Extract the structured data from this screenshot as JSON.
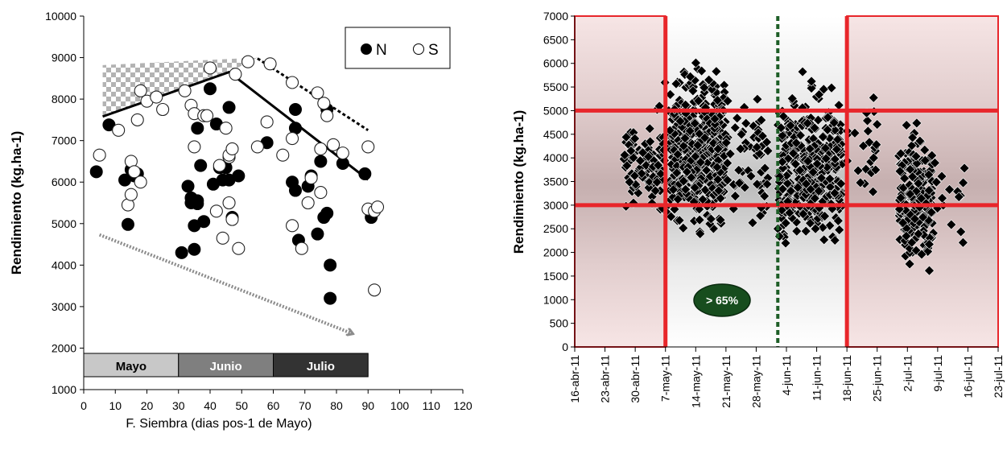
{
  "chart_data": [
    {
      "type": "scatter",
      "xlabel": "F. Siembra (dias pos-1 de Mayo)",
      "ylabel": "Rendimiento (kg.ha-1)",
      "xlim": [
        0,
        120
      ],
      "ylim": [
        1000,
        10000
      ],
      "x_ticks": [
        "0",
        "10",
        "20",
        "30",
        "40",
        "50",
        "60",
        "70",
        "80",
        "90",
        "100",
        "110",
        "120"
      ],
      "y_ticks": [
        "1000",
        "2000",
        "3000",
        "4000",
        "5000",
        "6000",
        "7000",
        "8000",
        "9000",
        "10000"
      ],
      "legend": {
        "placement": "top-right",
        "items": [
          {
            "label": "N",
            "marker": "filled-circle"
          },
          {
            "label": "S",
            "marker": "open-circle"
          }
        ]
      },
      "month_bands": [
        {
          "label": "Mayo",
          "x0": 0,
          "x1": 30,
          "color": "#c8c8c8",
          "text_color": "#000000"
        },
        {
          "label": "Junio",
          "x0": 30,
          "x1": 60,
          "color": "#7f7f7f",
          "text_color": "#ffffff"
        },
        {
          "label": "Julio",
          "x0": 60,
          "x1": 90,
          "color": "#333333",
          "text_color": "#ffffff"
        }
      ],
      "series": [
        {
          "name": "N",
          "points": [
            [
              4,
              6250
            ],
            [
              8,
              7380
            ],
            [
              13,
              6050
            ],
            [
              14,
              4980
            ],
            [
              15,
              6300
            ],
            [
              16,
              6150
            ],
            [
              17,
              6200
            ],
            [
              31,
              4300
            ],
            [
              33,
              5900
            ],
            [
              34,
              5500
            ],
            [
              34,
              5620
            ],
            [
              35,
              4950
            ],
            [
              35,
              4380
            ],
            [
              36,
              5480
            ],
            [
              36,
              5550
            ],
            [
              36,
              7300
            ],
            [
              37,
              6400
            ],
            [
              38,
              5050
            ],
            [
              40,
              8250
            ],
            [
              41,
              5950
            ],
            [
              42,
              7400
            ],
            [
              43,
              6350
            ],
            [
              44,
              6050
            ],
            [
              45,
              6350
            ],
            [
              46,
              7800
            ],
            [
              46,
              6050
            ],
            [
              47,
              5150
            ],
            [
              49,
              6150
            ],
            [
              58,
              6950
            ],
            [
              66,
              6000
            ],
            [
              67,
              7750
            ],
            [
              67,
              7300
            ],
            [
              67,
              5800
            ],
            [
              68,
              4600
            ],
            [
              71,
              5900
            ],
            [
              72,
              6150
            ],
            [
              74,
              4750
            ],
            [
              75,
              6500
            ],
            [
              76,
              5150
            ],
            [
              77,
              5250
            ],
            [
              77,
              7750
            ],
            [
              78,
              4000
            ],
            [
              78,
              3200
            ],
            [
              82,
              6450
            ],
            [
              89,
              6200
            ],
            [
              91,
              5150
            ]
          ]
        },
        {
          "name": "S",
          "points": [
            [
              5,
              6650
            ],
            [
              11,
              7250
            ],
            [
              14,
              5450
            ],
            [
              15,
              6500
            ],
            [
              15,
              5700
            ],
            [
              16,
              6250
            ],
            [
              17,
              7500
            ],
            [
              18,
              8200
            ],
            [
              18,
              6000
            ],
            [
              20,
              7950
            ],
            [
              23,
              8050
            ],
            [
              25,
              7750
            ],
            [
              32,
              8200
            ],
            [
              34,
              7850
            ],
            [
              35,
              7650
            ],
            [
              35,
              6850
            ],
            [
              38,
              7600
            ],
            [
              39,
              7600
            ],
            [
              40,
              8750
            ],
            [
              42,
              5300
            ],
            [
              43,
              6400
            ],
            [
              44,
              4650
            ],
            [
              45,
              7300
            ],
            [
              46,
              6600
            ],
            [
              46,
              6650
            ],
            [
              46,
              5500
            ],
            [
              47,
              6800
            ],
            [
              47,
              5100
            ],
            [
              48,
              8600
            ],
            [
              49,
              4400
            ],
            [
              52,
              8900
            ],
            [
              55,
              6850
            ],
            [
              58,
              7450
            ],
            [
              59,
              8850
            ],
            [
              63,
              6650
            ],
            [
              66,
              7050
            ],
            [
              66,
              8400
            ],
            [
              66,
              4950
            ],
            [
              69,
              4400
            ],
            [
              71,
              5500
            ],
            [
              72,
              6100
            ],
            [
              74,
              8150
            ],
            [
              75,
              6800
            ],
            [
              75,
              5750
            ],
            [
              76,
              7900
            ],
            [
              77,
              7600
            ],
            [
              79,
              6900
            ],
            [
              82,
              6700
            ],
            [
              90,
              6850
            ],
            [
              90,
              5350
            ],
            [
              92,
              5300
            ],
            [
              92,
              3400
            ],
            [
              93,
              5400
            ]
          ]
        }
      ],
      "trend_lines": [
        {
          "style": "solid",
          "points": [
            [
              6,
              7580
            ],
            [
              46,
              8650
            ],
            [
              90,
              6060
            ]
          ]
        },
        {
          "style": "dashed",
          "points": [
            [
              55,
              8980
            ],
            [
              90,
              7250
            ]
          ]
        }
      ],
      "arrow": {
        "style": "dotted",
        "from": [
          5,
          4730
        ],
        "to": [
          85,
          2350
        ]
      },
      "hatch_area": {
        "points": [
          [
            6,
            8820
          ],
          [
            55,
            9000
          ],
          [
            46,
            8650
          ],
          [
            6,
            7580
          ]
        ]
      }
    },
    {
      "type": "scatter",
      "ylabel": "Rendimiento (kg.ha-1)",
      "ylim": [
        0,
        7000
      ],
      "x_ticks": [
        "16-abr-11",
        "23-abr-11",
        "30-abr-11",
        "7-may-11",
        "14-may-11",
        "21-may-11",
        "28-may-11",
        "4-jun-11",
        "11-jun-11",
        "18-jun-11",
        "25-jun-11",
        "2-jul-11",
        "9-jul-11",
        "16-jul-11",
        "23-jul-11"
      ],
      "y_ticks": [
        "0",
        "500",
        "1000",
        "1500",
        "2000",
        "2500",
        "3000",
        "3500",
        "4000",
        "4500",
        "5000",
        "5500",
        "6000",
        "6500",
        "7000"
      ],
      "x_range_days_since_first_tick": [
        0,
        98
      ],
      "reference_lines": {
        "vertical_red_days": [
          21,
          63
        ],
        "horizontal_red_values": [
          3000,
          5000
        ],
        "vertical_dashed_green_day": [
          47
        ]
      },
      "badge": {
        "label": "> 65%"
      },
      "shaded_regions_days": [
        [
          0,
          21
        ],
        [
          63,
          98
        ]
      ],
      "point_clusters": [
        {
          "x_days": [
            11,
            20
          ],
          "y_range": [
            2700,
            4900
          ],
          "count": 85
        },
        {
          "x_days": [
            19,
            22
          ],
          "y_range": [
            2200,
            6200
          ],
          "count": 20
        },
        {
          "x_days": [
            22,
            35
          ],
          "y_range": [
            2100,
            6300
          ],
          "count": 480
        },
        {
          "x_days": [
            32,
            45
          ],
          "y_range": [
            1900,
            5700
          ],
          "count": 80
        },
        {
          "x_days": [
            47,
            62
          ],
          "y_range": [
            1600,
            5800
          ],
          "count": 330
        },
        {
          "x_days": [
            51,
            62
          ],
          "y_range": [
            1200,
            6600
          ],
          "count": 40
        },
        {
          "x_days": [
            63,
            70
          ],
          "y_range": [
            2700,
            5900
          ],
          "count": 25
        },
        {
          "x_days": [
            75,
            83
          ],
          "y_range": [
            1000,
            5300
          ],
          "count": 200
        },
        {
          "x_days": [
            83,
            91
          ],
          "y_range": [
            1900,
            4700
          ],
          "count": 15
        }
      ]
    }
  ]
}
